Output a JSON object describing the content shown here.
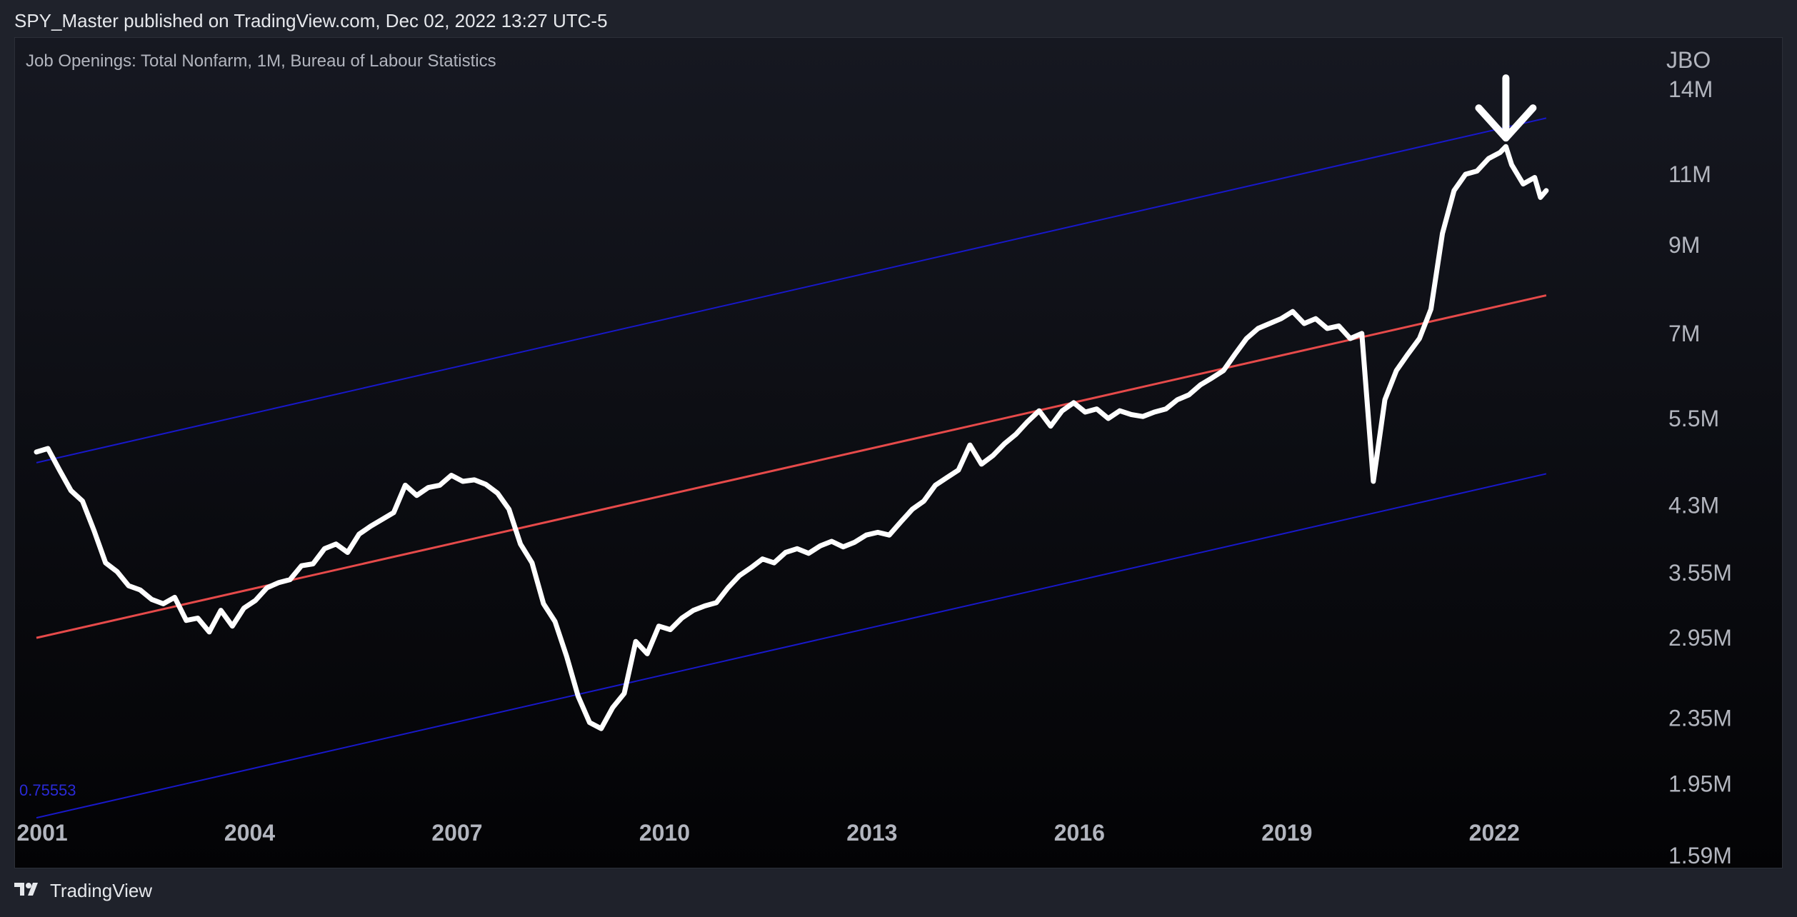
{
  "header": {
    "publisher_line": "SPY_Master published on TradingView.com, Dec 02, 2022 13:27 UTC-5"
  },
  "footer": {
    "brand_label": "TradingView",
    "logo_icon": "tradingview-logo-icon"
  },
  "colors": {
    "series": "#ffffff",
    "regression": "#e64a4a",
    "channel": "#1818c8",
    "axis_text": "#b2b5be",
    "bound_label": "#2a2ad8"
  },
  "chart_data": {
    "type": "line",
    "title": "Job Openings: Total Nonfarm, 1M, Bureau of Labour Statistics",
    "symbol": "JBO",
    "x_tick_labels": [
      "2001",
      "2004",
      "2007",
      "2010",
      "2013",
      "2016",
      "2019",
      "2022"
    ],
    "y_tick_labels": [
      "14M",
      "11M",
      "9M",
      "7M",
      "5.5M",
      "4.3M",
      "3.55M",
      "2.95M",
      "2.35M",
      "1.95M",
      "1.59M"
    ],
    "y_ticks": [
      14000000,
      11000000,
      9000000,
      7000000,
      5500000,
      4300000,
      3550000,
      2950000,
      2350000,
      1950000,
      1590000
    ],
    "y_scale": "log",
    "x_range": [
      "2000-12",
      "2022-12"
    ],
    "y_range": [
      1530000,
      16200000
    ],
    "grid": false,
    "series": [
      {
        "x": [
          "2000-12",
          "2001-02",
          "2001-04",
          "2001-06",
          "2001-08",
          "2001-10",
          "2001-12",
          "2002-02",
          "2002-04",
          "2002-06",
          "2002-08",
          "2002-10",
          "2002-12",
          "2003-02",
          "2003-04",
          "2003-06",
          "2003-08",
          "2003-10",
          "2003-12",
          "2004-02",
          "2004-04",
          "2004-06",
          "2004-08",
          "2004-10",
          "2004-12",
          "2005-02",
          "2005-04",
          "2005-06",
          "2005-08",
          "2005-10",
          "2005-12",
          "2006-02",
          "2006-04",
          "2006-06",
          "2006-08",
          "2006-10",
          "2006-12",
          "2007-02",
          "2007-04",
          "2007-06",
          "2007-08",
          "2007-10",
          "2007-12",
          "2008-02",
          "2008-04",
          "2008-06",
          "2008-08",
          "2008-10",
          "2008-12",
          "2009-02",
          "2009-04",
          "2009-06",
          "2009-08",
          "2009-10",
          "2009-12",
          "2010-02",
          "2010-04",
          "2010-06",
          "2010-08",
          "2010-10",
          "2010-12",
          "2011-02",
          "2011-04",
          "2011-06",
          "2011-08",
          "2011-10",
          "2011-12",
          "2012-02",
          "2012-04",
          "2012-06",
          "2012-08",
          "2012-10",
          "2012-12",
          "2013-02",
          "2013-04",
          "2013-06",
          "2013-08",
          "2013-10",
          "2013-12",
          "2014-02",
          "2014-04",
          "2014-06",
          "2014-08",
          "2014-10",
          "2014-12",
          "2015-02",
          "2015-04",
          "2015-06",
          "2015-08",
          "2015-10",
          "2015-12",
          "2016-02",
          "2016-04",
          "2016-06",
          "2016-08",
          "2016-10",
          "2016-12",
          "2017-02",
          "2017-04",
          "2017-06",
          "2017-08",
          "2017-10",
          "2017-12",
          "2018-02",
          "2018-04",
          "2018-06",
          "2018-08",
          "2018-10",
          "2018-12",
          "2019-02",
          "2019-04",
          "2019-06",
          "2019-08",
          "2019-10",
          "2019-12",
          "2020-02",
          "2020-04",
          "2020-06",
          "2020-08",
          "2020-10",
          "2020-12",
          "2021-02",
          "2021-04",
          "2021-06",
          "2021-08",
          "2021-10",
          "2021-12",
          "2022-02",
          "2022-03",
          "2022-04",
          "2022-06",
          "2022-08",
          "2022-09",
          "2022-10"
        ],
        "y": [
          5000000,
          5050000,
          4750000,
          4480000,
          4350000,
          4000000,
          3650000,
          3560000,
          3420000,
          3380000,
          3290000,
          3250000,
          3310000,
          3100000,
          3120000,
          3000000,
          3190000,
          3050000,
          3210000,
          3280000,
          3400000,
          3450000,
          3480000,
          3620000,
          3640000,
          3800000,
          3850000,
          3760000,
          3960000,
          4050000,
          4130000,
          4210000,
          4550000,
          4420000,
          4520000,
          4550000,
          4680000,
          4600000,
          4620000,
          4560000,
          4450000,
          4250000,
          3850000,
          3650000,
          3250000,
          3090000,
          2800000,
          2500000,
          2320000,
          2280000,
          2420000,
          2520000,
          2920000,
          2820000,
          3050000,
          3020000,
          3120000,
          3190000,
          3230000,
          3260000,
          3400000,
          3520000,
          3600000,
          3690000,
          3650000,
          3760000,
          3800000,
          3750000,
          3830000,
          3880000,
          3820000,
          3870000,
          3950000,
          3980000,
          3950000,
          4100000,
          4250000,
          4350000,
          4550000,
          4650000,
          4750000,
          5100000,
          4830000,
          4950000,
          5120000,
          5260000,
          5450000,
          5620000,
          5380000,
          5620000,
          5750000,
          5600000,
          5650000,
          5500000,
          5620000,
          5560000,
          5530000,
          5600000,
          5650000,
          5800000,
          5880000,
          6050000,
          6170000,
          6300000,
          6600000,
          6900000,
          7100000,
          7200000,
          7300000,
          7450000,
          7200000,
          7300000,
          7100000,
          7150000,
          6900000,
          7000000,
          4600000,
          5800000,
          6300000,
          6600000,
          6900000,
          7500000,
          9300000,
          10500000,
          11000000,
          11100000,
          11500000,
          11700000,
          11900000,
          11300000,
          10700000,
          10900000,
          10300000,
          10500000
        ]
      }
    ],
    "regression_line": {
      "x": [
        "2000-12",
        "2022-10"
      ],
      "y": [
        2950000,
        7800000
      ]
    },
    "upper_channel": {
      "x": [
        "2000-12",
        "2022-10"
      ],
      "y": [
        4850000,
        12900000
      ]
    },
    "lower_channel": {
      "x": [
        "2000-12",
        "2022-10"
      ],
      "y": [
        1770000,
        4700000
      ]
    },
    "lower_bound_label": "0.75553",
    "annotation": {
      "type": "arrow-down",
      "x": "2022-03"
    }
  }
}
